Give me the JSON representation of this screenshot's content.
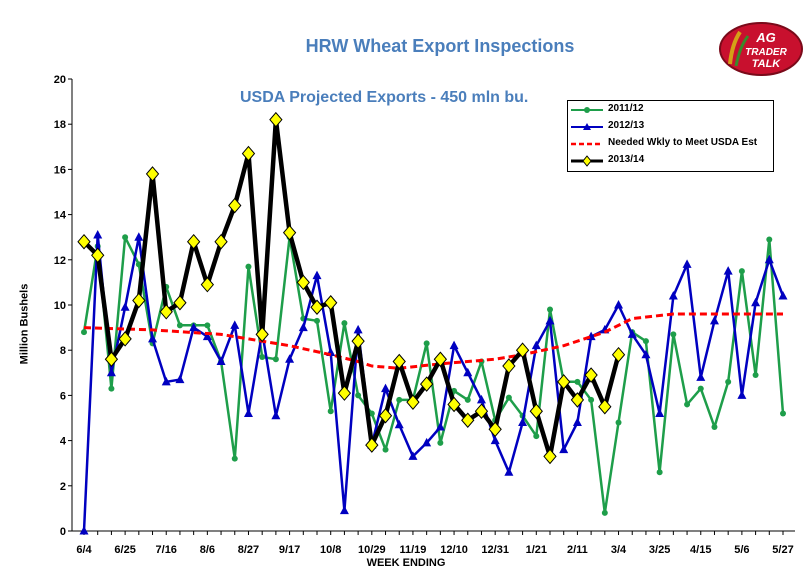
{
  "chart_data": {
    "type": "line",
    "title": "HRW Wheat Export Inspections",
    "subtitle": "USDA Projected Exports - 450 mln bu.",
    "xlabel": "WEEK ENDING",
    "ylabel": "Million Bushels",
    "ylim": [
      0,
      20
    ],
    "y_ticks": [
      "0",
      "2",
      "4",
      "6",
      "8",
      "10",
      "12",
      "14",
      "16",
      "18",
      "20"
    ],
    "x_tick_labels": [
      "6/4",
      "6/25",
      "7/16",
      "8/6",
      "8/27",
      "9/17",
      "10/8",
      "10/29",
      "11/19",
      "12/10",
      "12/31",
      "1/21",
      "2/11",
      "3/4",
      "3/25",
      "4/15",
      "5/6",
      "5/27"
    ],
    "grid": false,
    "legend_position": "top-right",
    "series": [
      {
        "name": "2011/12",
        "color": "#1e9e4a",
        "marker": "circle",
        "values": [
          8.8,
          12.6,
          6.3,
          13.0,
          11.8,
          8.3,
          10.8,
          9.1,
          9.1,
          9.1,
          7.5,
          3.2,
          11.7,
          7.7,
          7.6,
          13.0,
          9.4,
          9.3,
          5.3,
          9.2,
          6.0,
          5.2,
          3.6,
          5.8,
          5.8,
          8.3,
          3.9,
          6.2,
          5.8,
          7.5,
          4.9,
          5.9,
          5.1,
          4.2,
          9.8,
          6.6,
          6.6,
          5.8,
          0.8,
          4.8,
          8.8,
          8.4,
          2.6,
          8.7,
          5.6,
          6.3,
          4.6,
          6.6,
          11.5,
          6.9,
          12.9,
          5.2
        ]
      },
      {
        "name": "2012/13",
        "color": "#0000c0",
        "marker": "triangle",
        "values": [
          0.0,
          13.1,
          7.0,
          9.9,
          13.0,
          8.5,
          6.6,
          6.7,
          9.0,
          8.6,
          7.5,
          9.1,
          5.2,
          8.8,
          5.1,
          7.6,
          9.0,
          11.3,
          7.9,
          0.9,
          8.9,
          3.8,
          6.3,
          4.7,
          3.3,
          3.9,
          4.6,
          8.2,
          7.0,
          5.8,
          4.0,
          2.6,
          4.8,
          8.2,
          9.3,
          3.6,
          4.8,
          8.6,
          8.9,
          10.0,
          8.7,
          7.8,
          5.2,
          10.4,
          11.8,
          6.8,
          9.3,
          11.5,
          6.0,
          10.1,
          12.0,
          10.4
        ]
      },
      {
        "name": "Needed Wkly to Meet USDA Est",
        "color": "#ff0000",
        "style": "dashed",
        "x": [
          0,
          5,
          10,
          15,
          18,
          20,
          21,
          23,
          26,
          30,
          32,
          35,
          38,
          40,
          43,
          51
        ],
        "values": [
          9.0,
          8.9,
          8.7,
          8.2,
          7.8,
          7.5,
          7.3,
          7.2,
          7.4,
          7.6,
          7.8,
          8.2,
          8.8,
          9.4,
          9.6,
          9.6
        ]
      },
      {
        "name": "2013/14",
        "color": "#000000",
        "marker": "diamond",
        "marker_color": "#ffff00",
        "values": [
          12.8,
          12.2,
          7.6,
          8.5,
          10.2,
          15.8,
          9.7,
          10.1,
          12.8,
          10.9,
          12.8,
          14.4,
          16.7,
          8.7,
          18.2,
          13.2,
          11.0,
          9.9,
          10.1,
          6.1,
          8.4,
          3.8,
          5.1,
          7.5,
          5.7,
          6.5,
          7.6,
          5.6,
          4.9,
          5.3,
          4.5,
          7.3,
          8.0,
          5.3,
          3.3,
          6.6,
          5.8,
          6.9,
          5.5,
          7.8
        ]
      }
    ]
  },
  "logo": {
    "line1": "AG",
    "line2": "TRADER",
    "line3": "TALK"
  }
}
